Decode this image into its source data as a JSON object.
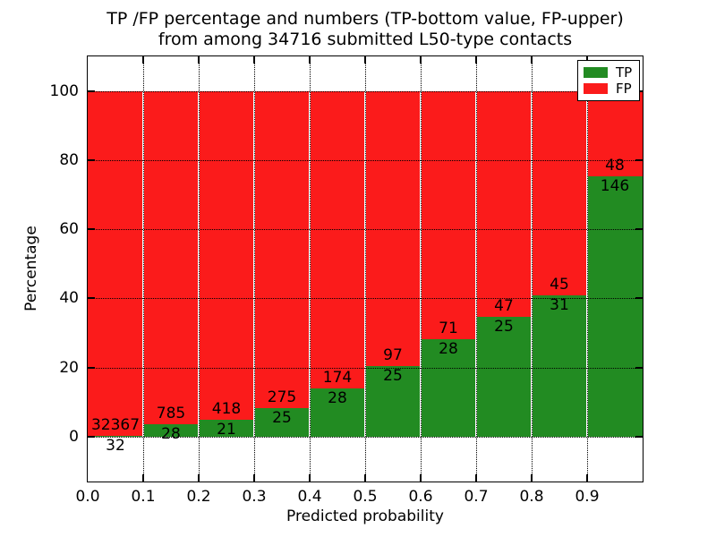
{
  "title": {
    "line1": "TP /FP percentage and numbers (TP-bottom value, FP-upper)",
    "line2": "from among 34716 submitted L50-type contacts"
  },
  "chart_data": {
    "type": "bar",
    "stacked": true,
    "normalized": "each bar totals 100%",
    "title": "TP /FP percentage and numbers (TP-bottom value, FP-upper) from among 34716 submitted L50-type contacts",
    "xlabel": "Predicted probability",
    "ylabel": "Percentage",
    "categories": [
      "0.0",
      "0.1",
      "0.2",
      "0.3",
      "0.4",
      "0.5",
      "0.6",
      "0.7",
      "0.8",
      "0.9"
    ],
    "bin_width": 0.1,
    "series": [
      {
        "name": "TP",
        "color": "#228b22",
        "values": [
          32,
          28,
          21,
          25,
          28,
          25,
          28,
          25,
          31,
          146
        ]
      },
      {
        "name": "FP",
        "color": "#fb1b1b",
        "values": [
          32367,
          785,
          418,
          275,
          174,
          97,
          71,
          47,
          45,
          48
        ]
      }
    ],
    "total_contacts": 34716,
    "x_tick_labels": [
      "0.0",
      "0.1",
      "0.2",
      "0.3",
      "0.4",
      "0.5",
      "0.6",
      "0.7",
      "0.8",
      "0.9"
    ],
    "y_ticks": [
      0,
      20,
      40,
      60,
      80,
      100
    ],
    "xlim": [
      0,
      1
    ],
    "ylim": [
      -13,
      110
    ],
    "grid": "dotted black, on top of bars",
    "legend": {
      "position": "upper right",
      "entries": [
        {
          "label": "TP",
          "color": "#228b22"
        },
        {
          "label": "FP",
          "color": "#fb1b1b"
        }
      ]
    }
  }
}
